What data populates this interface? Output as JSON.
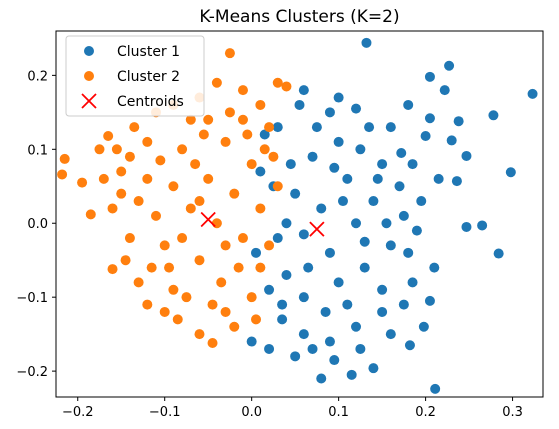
{
  "chart_data": {
    "type": "scatter",
    "title": "K-Means Clusters (K=2)",
    "xlabel": "",
    "ylabel": "",
    "xlim": [
      -0.225,
      0.335
    ],
    "ylim": [
      -0.235,
      0.26
    ],
    "xticks": [
      -0.2,
      -0.1,
      0.0,
      0.1,
      0.2,
      0.3
    ],
    "xtick_labels": [
      "−0.2",
      "−0.1",
      "0.0",
      "0.1",
      "0.2",
      "0.3"
    ],
    "yticks": [
      -0.2,
      -0.1,
      0.0,
      0.1,
      0.2
    ],
    "ytick_labels": [
      "−0.2",
      "−0.1",
      "0.0",
      "0.1",
      "0.2"
    ],
    "grid": false,
    "legend_position": "top-left",
    "colors": {
      "cluster1": "#1f77b4",
      "cluster2": "#ff7f0e",
      "centroids": "#ff0000"
    },
    "series": [
      {
        "name": "Cluster 1",
        "marker": "circle",
        "points": [
          [
            0.132,
            0.244
          ],
          [
            0.323,
            0.175
          ],
          [
            0.205,
            0.198
          ],
          [
            0.227,
            0.213
          ],
          [
            0.222,
            0.18
          ],
          [
            0.278,
            0.146
          ],
          [
            0.298,
            0.069
          ],
          [
            0.284,
            -0.041
          ],
          [
            0.211,
            -0.224
          ],
          [
            0.238,
            0.138
          ],
          [
            0.23,
            0.112
          ],
          [
            0.205,
            0.142
          ],
          [
            0.247,
            0.091
          ],
          [
            0.236,
            0.057
          ],
          [
            0.247,
            -0.005
          ],
          [
            0.265,
            -0.003
          ],
          [
            0.2,
            0.118
          ],
          [
            0.185,
            0.08
          ],
          [
            0.195,
            0.03
          ],
          [
            0.21,
            -0.06
          ],
          [
            0.205,
            -0.105
          ],
          [
            0.198,
            -0.14
          ],
          [
            0.182,
            -0.165
          ],
          [
            0.16,
            -0.15
          ],
          [
            0.14,
            -0.196
          ],
          [
            0.095,
            -0.185
          ],
          [
            0.08,
            -0.21
          ],
          [
            0.115,
            -0.205
          ],
          [
            0.05,
            -0.18
          ],
          [
            0.02,
            -0.17
          ],
          [
            0.0,
            -0.16
          ],
          [
            0.035,
            -0.13
          ],
          [
            0.06,
            -0.15
          ],
          [
            0.09,
            -0.16
          ],
          [
            0.12,
            -0.14
          ],
          [
            0.15,
            -0.12
          ],
          [
            0.175,
            -0.11
          ],
          [
            0.1,
            0.17
          ],
          [
            0.06,
            0.18
          ],
          [
            0.09,
            0.15
          ],
          [
            0.12,
            0.155
          ],
          [
            0.16,
            0.13
          ],
          [
            0.18,
            0.16
          ],
          [
            0.055,
            0.16
          ],
          [
            0.03,
            0.13
          ],
          [
            0.15,
            0.08
          ],
          [
            0.17,
            0.05
          ],
          [
            0.14,
            0.03
          ],
          [
            0.12,
            0.0
          ],
          [
            0.16,
            -0.03
          ],
          [
            0.13,
            -0.06
          ],
          [
            0.1,
            -0.08
          ],
          [
            0.18,
            -0.04
          ],
          [
            0.15,
            -0.09
          ],
          [
            0.085,
            -0.12
          ],
          [
            0.06,
            -0.1
          ],
          [
            0.04,
            -0.07
          ],
          [
            0.03,
            -0.02
          ],
          [
            0.05,
            0.04
          ],
          [
            0.07,
            0.09
          ],
          [
            0.1,
            0.11
          ],
          [
            0.11,
            0.06
          ],
          [
            0.08,
            0.02
          ],
          [
            0.09,
            -0.04
          ],
          [
            0.065,
            -0.06
          ],
          [
            0.045,
            0.08
          ],
          [
            0.025,
            0.05
          ],
          [
            0.02,
            -0.09
          ],
          [
            0.015,
            0.12
          ],
          [
            0.125,
            0.1
          ],
          [
            0.175,
            0.01
          ],
          [
            0.185,
            -0.08
          ],
          [
            0.11,
            -0.11
          ],
          [
            0.075,
            0.13
          ],
          [
            0.135,
            0.13
          ],
          [
            0.105,
            0.03
          ],
          [
            0.155,
            0.0
          ],
          [
            0.035,
            -0.11
          ],
          [
            0.07,
            -0.17
          ],
          [
            0.125,
            -0.17
          ],
          [
            0.19,
            -0.01
          ],
          [
            0.215,
            0.06
          ],
          [
            0.172,
            0.095
          ],
          [
            0.01,
            0.07
          ],
          [
            0.04,
            0.0
          ],
          [
            0.005,
            -0.04
          ],
          [
            0.06,
            -0.015
          ],
          [
            0.095,
            0.075
          ],
          [
            0.13,
            -0.025
          ],
          [
            0.145,
            0.06
          ]
        ]
      },
      {
        "name": "Cluster 2",
        "marker": "circle",
        "points": [
          [
            -0.215,
            0.087
          ],
          [
            -0.218,
            0.066
          ],
          [
            -0.195,
            0.055
          ],
          [
            -0.175,
            0.1
          ],
          [
            -0.165,
            0.118
          ],
          [
            -0.185,
            0.012
          ],
          [
            -0.16,
            -0.062
          ],
          [
            -0.15,
            0.04
          ],
          [
            -0.14,
            0.09
          ],
          [
            -0.13,
            -0.08
          ],
          [
            -0.12,
            -0.11
          ],
          [
            -0.1,
            -0.12
          ],
          [
            -0.09,
            -0.09
          ],
          [
            -0.085,
            -0.13
          ],
          [
            -0.06,
            -0.15
          ],
          [
            -0.045,
            -0.162
          ],
          [
            -0.03,
            -0.12
          ],
          [
            -0.02,
            -0.14
          ],
          [
            0.0,
            -0.1
          ],
          [
            0.01,
            -0.06
          ],
          [
            -0.11,
            0.15
          ],
          [
            -0.09,
            0.16
          ],
          [
            -0.07,
            0.14
          ],
          [
            -0.06,
            0.17
          ],
          [
            -0.04,
            0.19
          ],
          [
            -0.025,
            0.23
          ],
          [
            -0.01,
            0.18
          ],
          [
            0.01,
            0.16
          ],
          [
            0.03,
            0.19
          ],
          [
            0.04,
            0.185
          ],
          [
            0.02,
            0.13
          ],
          [
            -0.01,
            0.14
          ],
          [
            -0.12,
            0.11
          ],
          [
            -0.15,
            0.07
          ],
          [
            -0.16,
            0.02
          ],
          [
            -0.14,
            -0.02
          ],
          [
            -0.13,
            0.03
          ],
          [
            -0.12,
            0.06
          ],
          [
            -0.11,
            0.01
          ],
          [
            -0.1,
            -0.03
          ],
          [
            -0.09,
            0.05
          ],
          [
            -0.08,
            0.1
          ],
          [
            -0.07,
            0.02
          ],
          [
            -0.06,
            -0.05
          ],
          [
            -0.05,
            0.06
          ],
          [
            -0.04,
            0.0
          ],
          [
            -0.03,
            0.11
          ],
          [
            -0.02,
            0.04
          ],
          [
            -0.01,
            -0.02
          ],
          [
            0.0,
            0.08
          ],
          [
            0.01,
            0.02
          ],
          [
            0.02,
            -0.03
          ],
          [
            0.025,
            0.09
          ],
          [
            0.03,
            0.05
          ],
          [
            -0.005,
            0.12
          ],
          [
            -0.095,
            -0.06
          ],
          [
            -0.075,
            -0.1
          ],
          [
            -0.055,
            0.12
          ],
          [
            -0.035,
            -0.08
          ],
          [
            -0.015,
            -0.06
          ],
          [
            -0.145,
            -0.05
          ],
          [
            -0.17,
            0.06
          ],
          [
            -0.155,
            0.1
          ],
          [
            -0.135,
            0.13
          ],
          [
            -0.105,
            0.085
          ],
          [
            -0.065,
            0.08
          ],
          [
            -0.045,
            -0.11
          ],
          [
            -0.025,
            0.15
          ],
          [
            0.005,
            -0.13
          ],
          [
            -0.115,
            -0.06
          ],
          [
            -0.08,
            -0.02
          ],
          [
            -0.06,
            0.03
          ],
          [
            -0.03,
            -0.03
          ],
          [
            0.015,
            0.1
          ],
          [
            -0.05,
            0.14
          ]
        ]
      },
      {
        "name": "Centroids",
        "marker": "x",
        "points": [
          [
            -0.05,
            0.005
          ],
          [
            0.075,
            -0.008
          ]
        ]
      }
    ]
  }
}
